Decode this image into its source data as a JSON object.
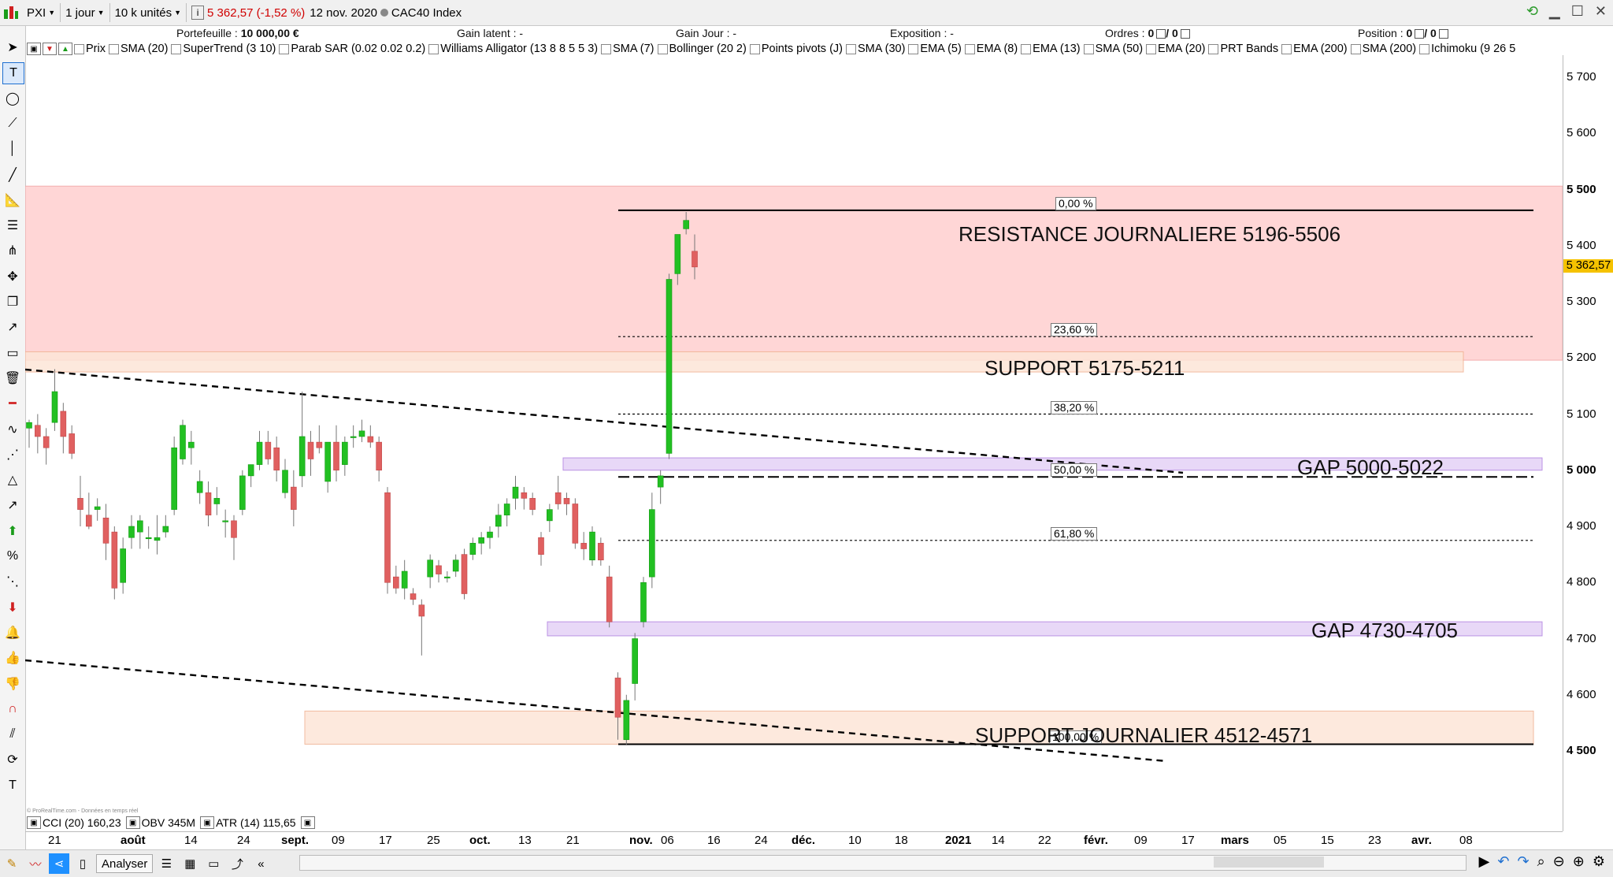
{
  "toolbar": {
    "symbol": "PXI",
    "period": "1 jour",
    "units": "10 k unités",
    "info_icon": "i",
    "price_text": "5 362,57 (-1,52 %)",
    "date": "12 nov. 2020",
    "instrument": "CAC40 Index"
  },
  "stats": {
    "portefeuille_label": "Portefeuille :",
    "portefeuille_value": "10 000,00 €",
    "gain_latent": "Gain latent : -",
    "gain_jour": "Gain Jour : -",
    "exposition": "Exposition : -",
    "ordres_label": "Ordres :",
    "ordres_a": "0",
    "ordres_b": "/ 0",
    "position_label": "Position :",
    "position_a": "0",
    "position_b": "/ 0"
  },
  "indicators": [
    "Prix",
    "SMA (20)",
    "SuperTrend (3 10)",
    "Parab SAR (0.02 0.02 0.2)",
    "Williams Alligator (13 8 8 5 5 3)",
    "SMA (7)",
    "Bollinger (20 2)",
    "Points pivots (J)",
    "SMA (30)",
    "EMA (5)",
    "EMA (8)",
    "EMA (13)",
    "SMA (50)",
    "EMA (20)",
    "PRT Bands",
    "EMA (200)",
    "SMA (200)",
    "Ichimoku (9 26 5"
  ],
  "sub_indicators": {
    "cci": "CCI (20) 160,23",
    "obv": "OBV 345M",
    "atr": "ATR (14) 115,65"
  },
  "copyright": "© ProRealTime.com - Données en temps réel",
  "price_axis": [
    {
      "label": "5 700",
      "v": 5700,
      "bold": false
    },
    {
      "label": "5 600",
      "v": 5600,
      "bold": false
    },
    {
      "label": "5 500",
      "v": 5500,
      "bold": true
    },
    {
      "label": "5 400",
      "v": 5400,
      "bold": false
    },
    {
      "label": "5 300",
      "v": 5300,
      "bold": false
    },
    {
      "label": "5 200",
      "v": 5200,
      "bold": false
    },
    {
      "label": "5 100",
      "v": 5100,
      "bold": false
    },
    {
      "label": "5 000",
      "v": 5000,
      "bold": true
    },
    {
      "label": "4 900",
      "v": 4900,
      "bold": false
    },
    {
      "label": "4 800",
      "v": 4800,
      "bold": false
    },
    {
      "label": "4 700",
      "v": 4700,
      "bold": false
    },
    {
      "label": "4 600",
      "v": 4600,
      "bold": false
    },
    {
      "label": "4 500",
      "v": 4500,
      "bold": true
    }
  ],
  "last_price_label": "5 362,57",
  "last_price": 5362.57,
  "time_axis": [
    {
      "label": "21",
      "bold": false
    },
    {
      "label": "août",
      "bold": true
    },
    {
      "label": "14",
      "bold": false
    },
    {
      "label": "24",
      "bold": false
    },
    {
      "label": "sept.",
      "bold": true
    },
    {
      "label": "09",
      "bold": false
    },
    {
      "label": "17",
      "bold": false
    },
    {
      "label": "25",
      "bold": false
    },
    {
      "label": "oct.",
      "bold": true
    },
    {
      "label": "13",
      "bold": false
    },
    {
      "label": "21",
      "bold": false
    },
    {
      "label": "nov.",
      "bold": true
    },
    {
      "label": "06",
      "bold": false
    },
    {
      "label": "16",
      "bold": false
    },
    {
      "label": "24",
      "bold": false
    },
    {
      "label": "déc.",
      "bold": true
    },
    {
      "label": "10",
      "bold": false
    },
    {
      "label": "18",
      "bold": false
    },
    {
      "label": "2021",
      "bold": true
    },
    {
      "label": "14",
      "bold": false
    },
    {
      "label": "22",
      "bold": false
    },
    {
      "label": "févr.",
      "bold": true
    },
    {
      "label": "09",
      "bold": false
    },
    {
      "label": "17",
      "bold": false
    },
    {
      "label": "mars",
      "bold": true
    },
    {
      "label": "05",
      "bold": false
    },
    {
      "label": "15",
      "bold": false
    },
    {
      "label": "23",
      "bold": false
    },
    {
      "label": "avr.",
      "bold": true
    },
    {
      "label": "08",
      "bold": false
    }
  ],
  "annotations": {
    "resistance": "RESISTANCE  JOURNALIERE 5196-5506",
    "support_1": "SUPPORT  5175-5211",
    "gap_1": "GAP 5000-5022",
    "gap_2": "GAP 4730-4705",
    "support_2": "SUPPORT JOURNALIER 4512-4571"
  },
  "fibonacci": [
    {
      "label": "0,00 %",
      "v": 5463
    },
    {
      "label": "23,60 %",
      "v": 5238
    },
    {
      "label": "38,20 %",
      "v": 5100
    },
    {
      "label": "50,00 %",
      "v": 4988
    },
    {
      "label": "61,80 %",
      "v": 4875
    },
    {
      "label": "100,00 %",
      "v": 4512
    }
  ],
  "bottom": {
    "analyser": "Analyser"
  },
  "colors": {
    "up": "#22c022",
    "down": "#e06060",
    "resistance_zone": "#ffd0d0",
    "support_zone": "#fde6d8",
    "gap_zone": "#e4d2f6",
    "last_price_bg": "#f5c200"
  },
  "chart_data": {
    "type": "candlestick",
    "title": "",
    "ylim": [
      4470,
      5720
    ],
    "candles": [
      {
        "o": 5075,
        "h": 5090,
        "l": 5040,
        "c": 5085
      },
      {
        "o": 5080,
        "h": 5100,
        "l": 5030,
        "c": 5060
      },
      {
        "o": 5060,
        "h": 5075,
        "l": 5010,
        "c": 5040
      },
      {
        "o": 5085,
        "h": 5180,
        "l": 5070,
        "c": 5140
      },
      {
        "o": 5105,
        "h": 5120,
        "l": 5030,
        "c": 5060
      },
      {
        "o": 5065,
        "h": 5080,
        "l": 5020,
        "c": 5030
      },
      {
        "o": 4950,
        "h": 4990,
        "l": 4900,
        "c": 4930
      },
      {
        "o": 4920,
        "h": 4960,
        "l": 4895,
        "c": 4900
      },
      {
        "o": 4930,
        "h": 4950,
        "l": 4910,
        "c": 4935
      },
      {
        "o": 4915,
        "h": 4940,
        "l": 4840,
        "c": 4870
      },
      {
        "o": 4890,
        "h": 4900,
        "l": 4770,
        "c": 4790
      },
      {
        "o": 4800,
        "h": 4880,
        "l": 4780,
        "c": 4860
      },
      {
        "o": 4880,
        "h": 4920,
        "l": 4860,
        "c": 4900
      },
      {
        "o": 4890,
        "h": 4920,
        "l": 4860,
        "c": 4910
      },
      {
        "o": 4880,
        "h": 4900,
        "l": 4860,
        "c": 4880
      },
      {
        "o": 4875,
        "h": 4920,
        "l": 4850,
        "c": 4880
      },
      {
        "o": 4890,
        "h": 4920,
        "l": 4880,
        "c": 4900
      },
      {
        "o": 4930,
        "h": 5060,
        "l": 4920,
        "c": 5040
      },
      {
        "o": 5020,
        "h": 5090,
        "l": 5010,
        "c": 5080
      },
      {
        "o": 5040,
        "h": 5070,
        "l": 5010,
        "c": 5050
      },
      {
        "o": 4960,
        "h": 5000,
        "l": 4940,
        "c": 4980
      },
      {
        "o": 4960,
        "h": 4980,
        "l": 4900,
        "c": 4920
      },
      {
        "o": 4940,
        "h": 4970,
        "l": 4920,
        "c": 4950
      },
      {
        "o": 4910,
        "h": 4930,
        "l": 4880,
        "c": 4910
      },
      {
        "o": 4910,
        "h": 4920,
        "l": 4840,
        "c": 4880
      },
      {
        "o": 4930,
        "h": 5000,
        "l": 4920,
        "c": 4990
      },
      {
        "o": 4990,
        "h": 5010,
        "l": 4970,
        "c": 5010
      },
      {
        "o": 5010,
        "h": 5070,
        "l": 5000,
        "c": 5050
      },
      {
        "o": 5050,
        "h": 5070,
        "l": 5010,
        "c": 5020
      },
      {
        "o": 5040,
        "h": 5060,
        "l": 4980,
        "c": 5000
      },
      {
        "o": 4960,
        "h": 5020,
        "l": 4950,
        "c": 5000
      },
      {
        "o": 4970,
        "h": 5000,
        "l": 4900,
        "c": 4930
      },
      {
        "o": 4990,
        "h": 5140,
        "l": 4970,
        "c": 5060
      },
      {
        "o": 5050,
        "h": 5070,
        "l": 4990,
        "c": 5020
      },
      {
        "o": 5050,
        "h": 5080,
        "l": 5030,
        "c": 5040
      },
      {
        "o": 4980,
        "h": 5050,
        "l": 4960,
        "c": 5050
      },
      {
        "o": 5050,
        "h": 5080,
        "l": 4980,
        "c": 5000
      },
      {
        "o": 5010,
        "h": 5060,
        "l": 4990,
        "c": 5050
      },
      {
        "o": 5060,
        "h": 5080,
        "l": 5040,
        "c": 5060
      },
      {
        "o": 5060,
        "h": 5090,
        "l": 5050,
        "c": 5070
      },
      {
        "o": 5060,
        "h": 5080,
        "l": 5040,
        "c": 5050
      },
      {
        "o": 5050,
        "h": 5060,
        "l": 4980,
        "c": 5000
      },
      {
        "o": 4960,
        "h": 4970,
        "l": 4780,
        "c": 4800
      },
      {
        "o": 4810,
        "h": 4830,
        "l": 4780,
        "c": 4790
      },
      {
        "o": 4790,
        "h": 4840,
        "l": 4770,
        "c": 4820
      },
      {
        "o": 4780,
        "h": 4790,
        "l": 4760,
        "c": 4770
      },
      {
        "o": 4760,
        "h": 4770,
        "l": 4670,
        "c": 4740
      },
      {
        "o": 4810,
        "h": 4850,
        "l": 4790,
        "c": 4840
      },
      {
        "o": 4830,
        "h": 4840,
        "l": 4800,
        "c": 4815
      },
      {
        "o": 4810,
        "h": 4820,
        "l": 4800,
        "c": 4810
      },
      {
        "o": 4820,
        "h": 4850,
        "l": 4810,
        "c": 4840
      },
      {
        "o": 4850,
        "h": 4860,
        "l": 4770,
        "c": 4780
      },
      {
        "o": 4850,
        "h": 4880,
        "l": 4840,
        "c": 4870
      },
      {
        "o": 4870,
        "h": 4890,
        "l": 4850,
        "c": 4880
      },
      {
        "o": 4880,
        "h": 4900,
        "l": 4860,
        "c": 4890
      },
      {
        "o": 4900,
        "h": 4940,
        "l": 4880,
        "c": 4920
      },
      {
        "o": 4920,
        "h": 4950,
        "l": 4900,
        "c": 4940
      },
      {
        "o": 4950,
        "h": 4990,
        "l": 4930,
        "c": 4970
      },
      {
        "o": 4960,
        "h": 4970,
        "l": 4930,
        "c": 4950
      },
      {
        "o": 4950,
        "h": 4960,
        "l": 4920,
        "c": 4930
      },
      {
        "o": 4880,
        "h": 4890,
        "l": 4830,
        "c": 4850
      },
      {
        "o": 4910,
        "h": 4940,
        "l": 4890,
        "c": 4930
      },
      {
        "o": 4960,
        "h": 4990,
        "l": 4930,
        "c": 4940
      },
      {
        "o": 4950,
        "h": 4960,
        "l": 4920,
        "c": 4940
      },
      {
        "o": 4940,
        "h": 4950,
        "l": 4860,
        "c": 4870
      },
      {
        "o": 4870,
        "h": 4890,
        "l": 4840,
        "c": 4860
      },
      {
        "o": 4840,
        "h": 4900,
        "l": 4830,
        "c": 4890
      },
      {
        "o": 4870,
        "h": 4880,
        "l": 4830,
        "c": 4840
      },
      {
        "o": 4810,
        "h": 4830,
        "l": 4720,
        "c": 4730
      },
      {
        "o": 4630,
        "h": 4640,
        "l": 4520,
        "c": 4560
      },
      {
        "o": 4520,
        "h": 4600,
        "l": 4510,
        "c": 4590
      },
      {
        "o": 4620,
        "h": 4710,
        "l": 4590,
        "c": 4700
      },
      {
        "o": 4730,
        "h": 4810,
        "l": 4720,
        "c": 4800
      },
      {
        "o": 4810,
        "h": 4960,
        "l": 4790,
        "c": 4930
      },
      {
        "o": 4970,
        "h": 5000,
        "l": 4940,
        "c": 4990
      },
      {
        "o": 5030,
        "h": 5350,
        "l": 5020,
        "c": 5340
      },
      {
        "o": 5350,
        "h": 5420,
        "l": 5330,
        "c": 5420
      },
      {
        "o": 5430,
        "h": 5460,
        "l": 5420,
        "c": 5445
      },
      {
        "o": 5390,
        "h": 5420,
        "l": 5340,
        "c": 5362
      }
    ],
    "zones": [
      {
        "name": "resistance",
        "from": 5196,
        "to": 5506
      },
      {
        "name": "support_1",
        "from": 5175,
        "to": 5211
      },
      {
        "name": "gap_1",
        "from": 5000,
        "to": 5022
      },
      {
        "name": "gap_2",
        "from": 4705,
        "to": 4730
      },
      {
        "name": "support_2",
        "from": 4512,
        "to": 4571
      }
    ]
  }
}
